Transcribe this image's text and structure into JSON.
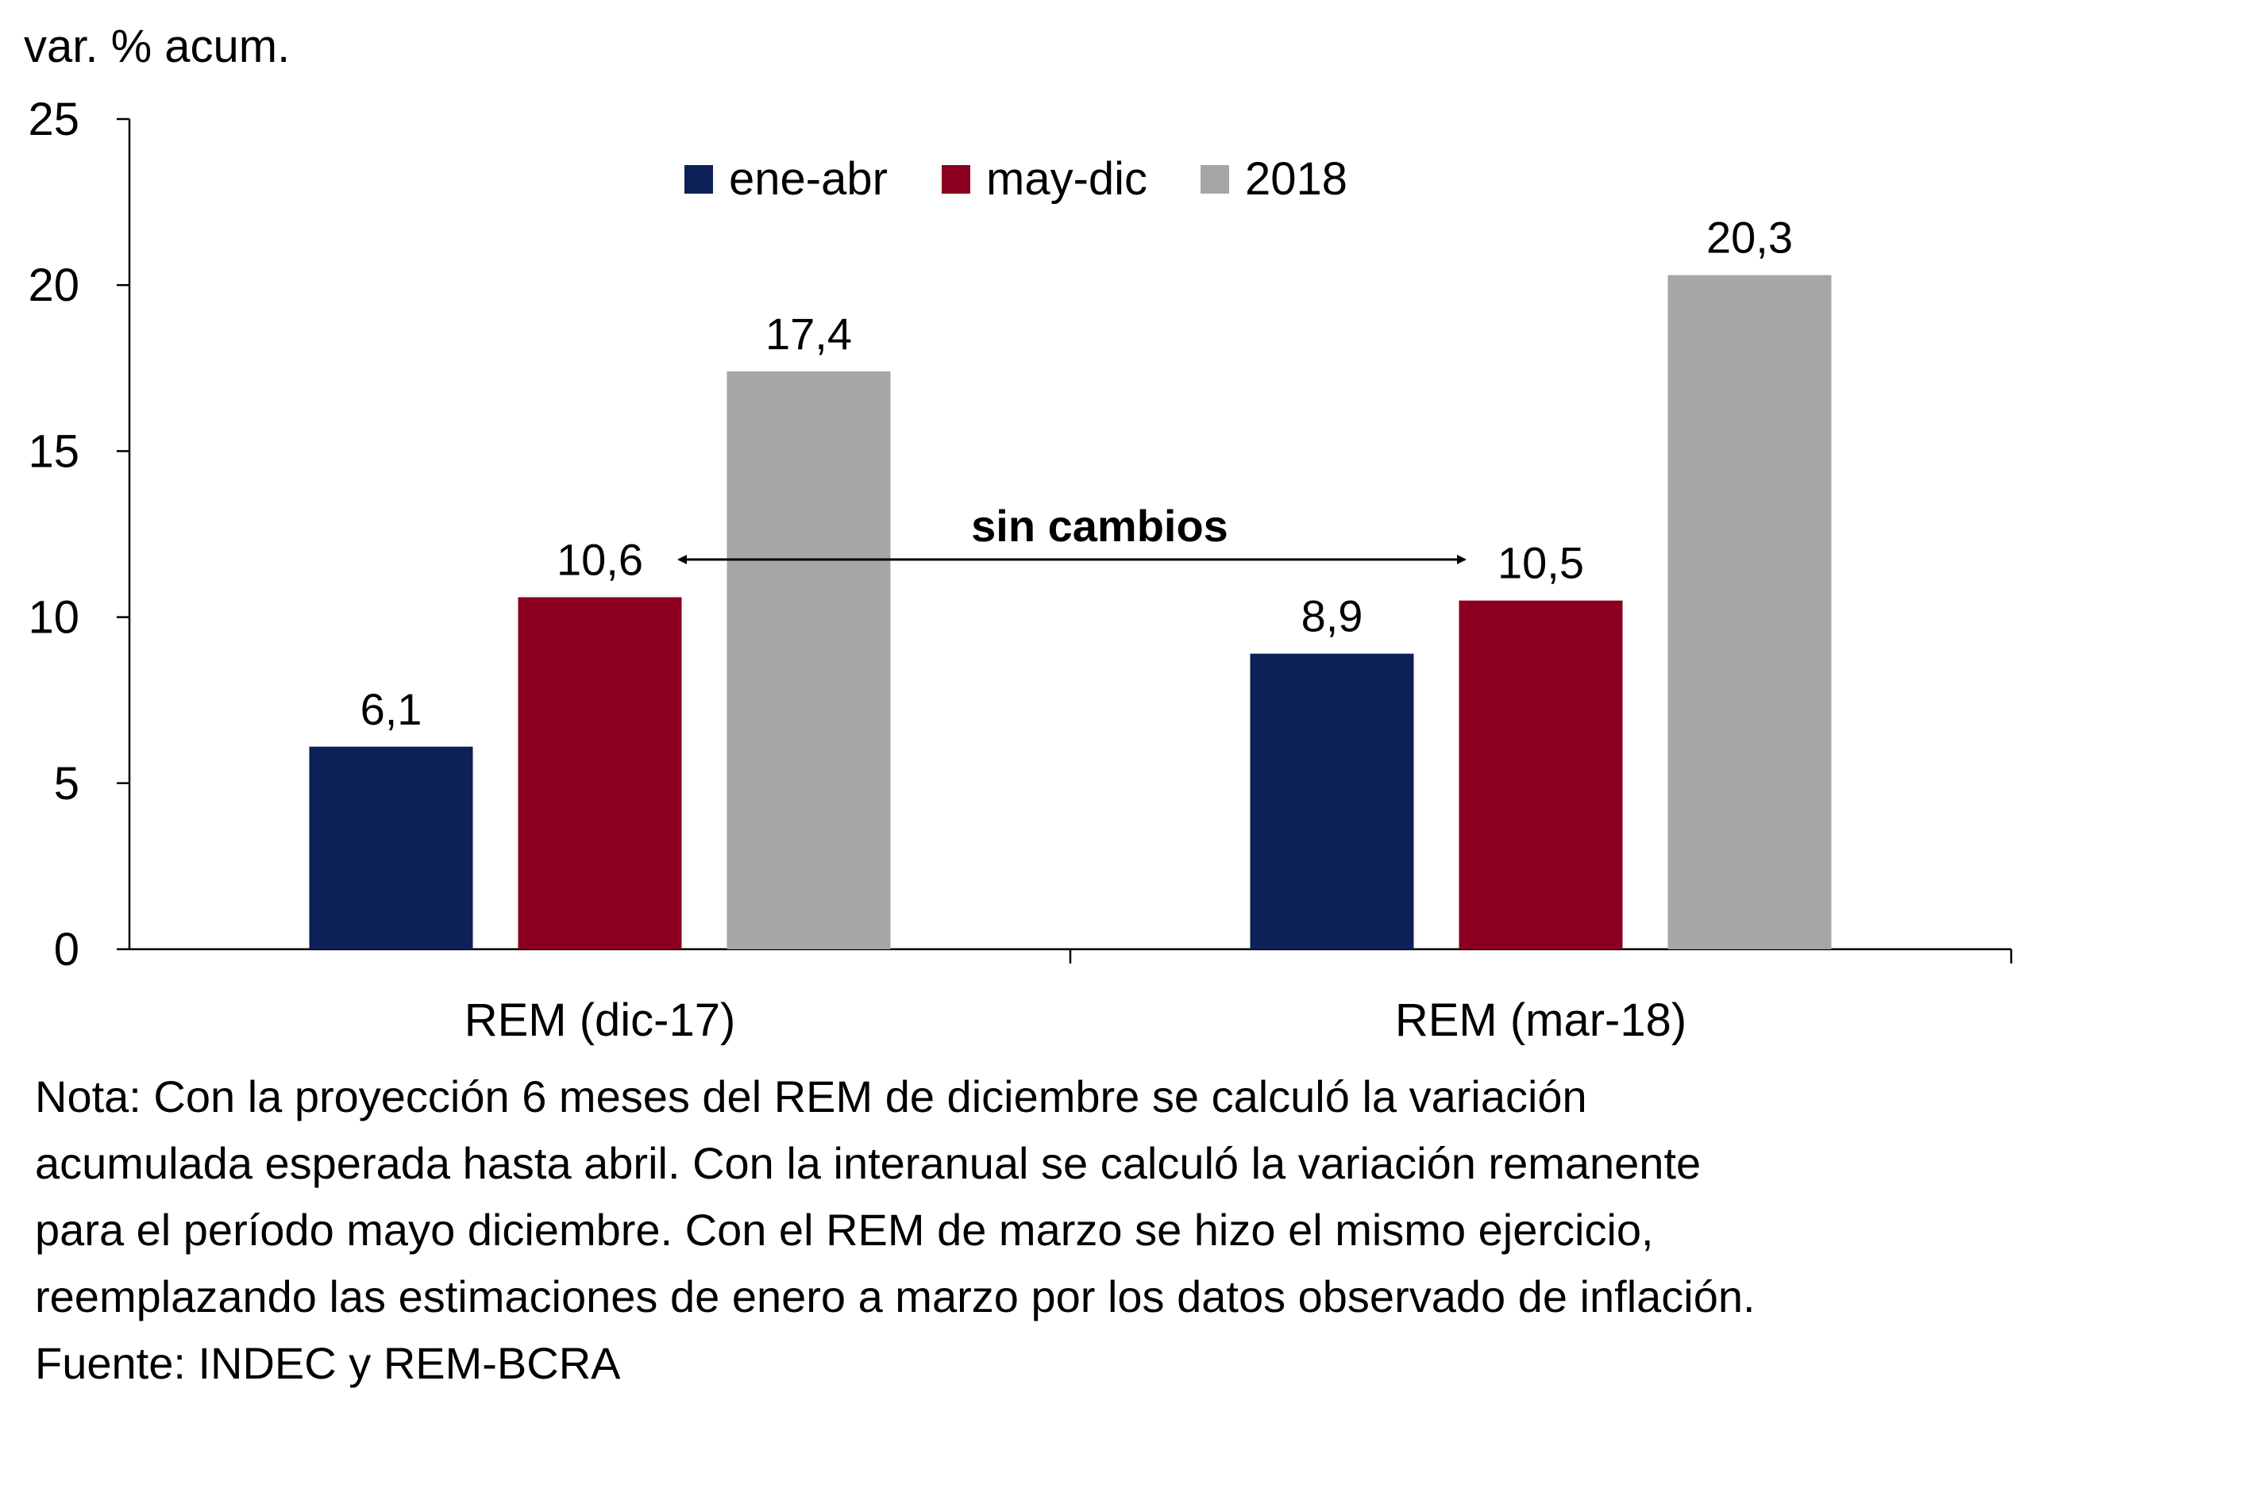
{
  "chart_data": {
    "type": "bar",
    "ylabel": "var. % acum.",
    "ylim": [
      0,
      25
    ],
    "yticks": [
      "0",
      "5",
      "10",
      "15",
      "20",
      "25"
    ],
    "categories": [
      "REM (dic-17)",
      "REM (mar-18)"
    ],
    "series": [
      {
        "name": "ene-abr",
        "color": "#0d2057",
        "values": [
          6.1,
          8.9
        ],
        "labels": [
          "6,1",
          "8,9"
        ]
      },
      {
        "name": "may-dic",
        "color": "#8b0020",
        "values": [
          10.6,
          10.5
        ],
        "labels": [
          "10,6",
          "10,5"
        ]
      },
      {
        "name": "2018",
        "color": "#a6a6a6",
        "values": [
          17.4,
          20.3
        ],
        "labels": [
          "17,4",
          "20,3"
        ]
      }
    ],
    "annotation": {
      "text": "sin cambios"
    },
    "legend_position": "top-center",
    "grid": false
  },
  "note": {
    "lines": [
      "Nota: Con la proyección 6 meses del REM de diciembre se calculó la variación",
      "acumulada esperada hasta abril. Con la interanual se calculó la variación remanente",
      "para el período mayo diciembre. Con el REM de marzo se hizo el mismo ejercicio,",
      "reemplazando las estimaciones de enero a marzo por los datos observado de inflación.",
      "Fuente: INDEC y REM-BCRA"
    ]
  }
}
